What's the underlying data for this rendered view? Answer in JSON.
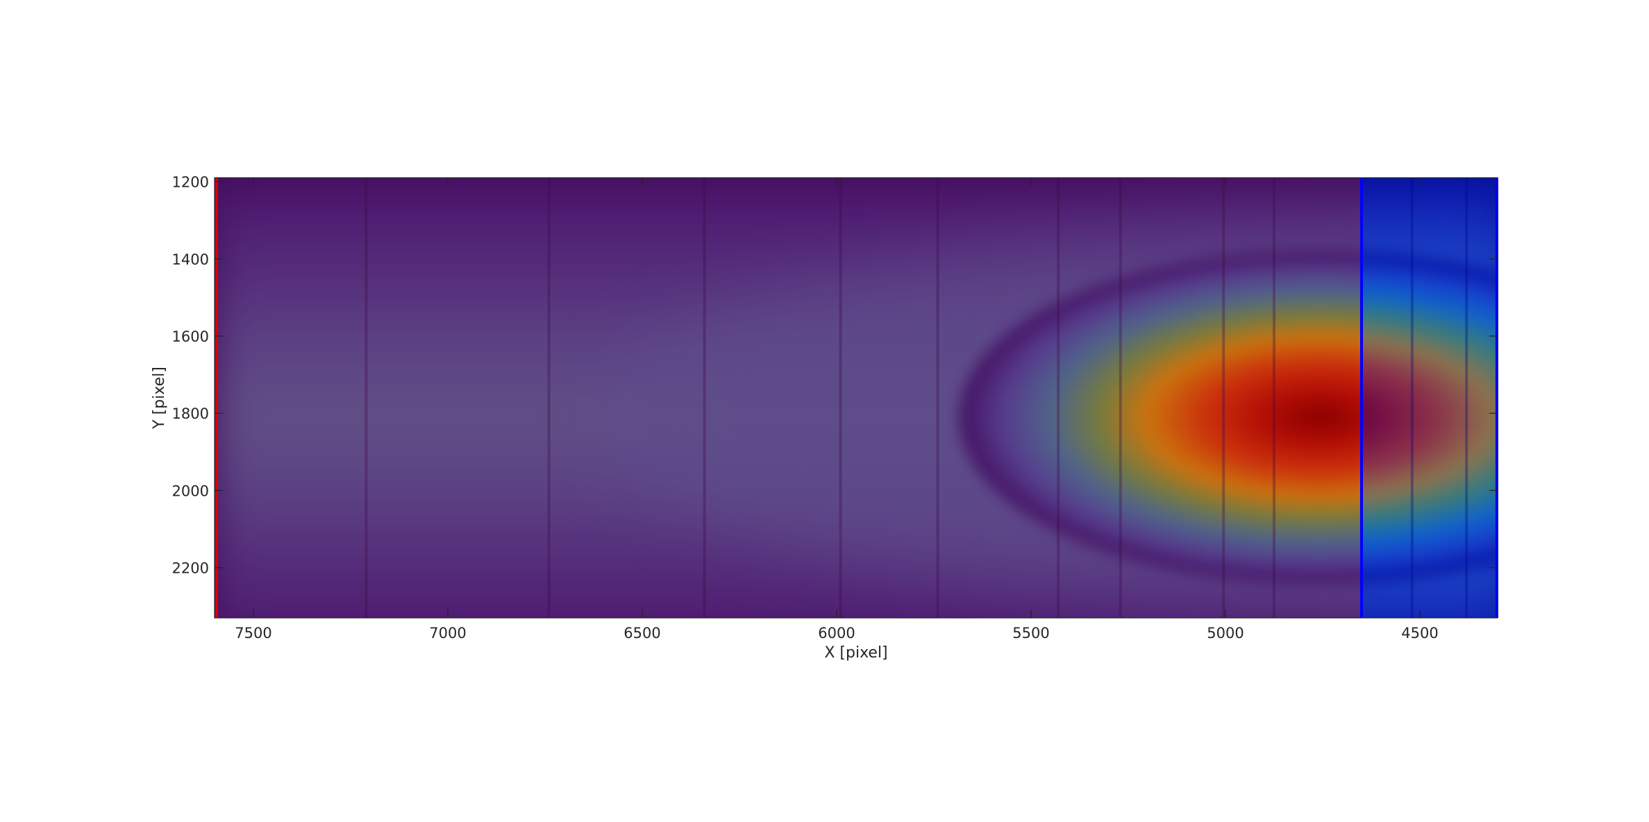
{
  "chart_data": {
    "type": "heatmap",
    "title": "",
    "xlabel": "X [pixel]",
    "ylabel": "Y [pixel]",
    "xlim": [
      7600,
      4300
    ],
    "ylim": [
      2330,
      1190
    ],
    "x_axis_reversed": true,
    "y_axis_inverted": true,
    "x_ticks": [
      7500,
      7000,
      6500,
      6000,
      5500,
      5000,
      4500
    ],
    "y_ticks": [
      1200,
      1400,
      1600,
      1800,
      2000,
      2200
    ],
    "colormap": "jet",
    "hotspot": {
      "x_center": 4560,
      "y_center": 1810
    },
    "vertical_streaks_x": [
      7210,
      6740,
      6340,
      5990,
      5740,
      5430,
      5270,
      5005,
      4875,
      4520,
      4380
    ],
    "boundary_lines": [
      {
        "x": 7595,
        "color": "#dd0000"
      },
      {
        "x": 4650,
        "color": "#0000ff"
      },
      {
        "x": 4302,
        "color": "#0000ff"
      }
    ],
    "overlays": [
      {
        "x_from": 7600,
        "x_to": 4650,
        "color": "#8b0000",
        "opacity": 0.45
      },
      {
        "x_from": 4650,
        "x_to": 4300,
        "color": "#00008b",
        "opacity": 0.45
      }
    ],
    "grid": false,
    "legend": "none"
  }
}
